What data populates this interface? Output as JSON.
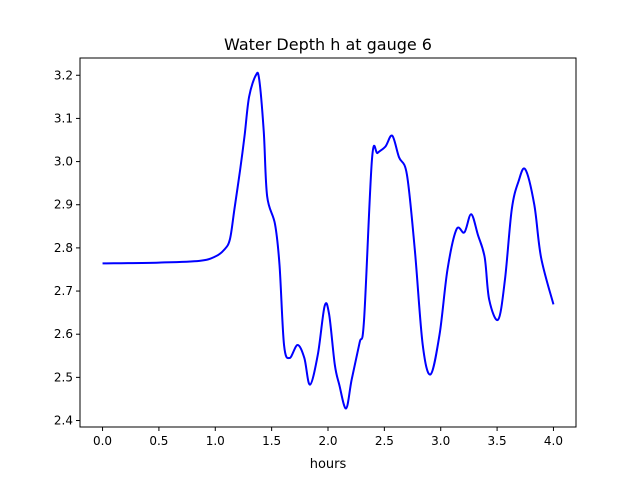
{
  "chart_data": {
    "type": "line",
    "title": "Water Depth h at gauge 6",
    "xlabel": "hours",
    "ylabel": "",
    "xlim": [
      -0.2,
      4.2
    ],
    "ylim": [
      2.385,
      3.24
    ],
    "xticks": [
      0.0,
      0.5,
      1.0,
      1.5,
      2.0,
      2.5,
      3.0,
      3.5,
      4.0
    ],
    "xtick_labels": [
      "0.0",
      "0.5",
      "1.0",
      "1.5",
      "2.0",
      "2.5",
      "3.0",
      "3.5",
      "4.0"
    ],
    "yticks": [
      2.4,
      2.5,
      2.6,
      2.7,
      2.8,
      2.9,
      3.0,
      3.1,
      3.2
    ],
    "ytick_labels": [
      "2.4",
      "2.5",
      "2.6",
      "2.7",
      "2.8",
      "2.9",
      "3.0",
      "3.1",
      "3.2"
    ],
    "grid": false,
    "series": [
      {
        "name": "h",
        "color": "#0000ff",
        "x": [
          0.0,
          0.5,
          0.86,
          1.0,
          1.08,
          1.13,
          1.17,
          1.22,
          1.26,
          1.3,
          1.36,
          1.39,
          1.43,
          1.46,
          1.53,
          1.57,
          1.61,
          1.66,
          1.73,
          1.79,
          1.84,
          1.91,
          1.97,
          2.01,
          2.06,
          2.1,
          2.16,
          2.21,
          2.28,
          2.32,
          2.39,
          2.44,
          2.51,
          2.57,
          2.63,
          2.7,
          2.77,
          2.84,
          2.91,
          2.99,
          3.06,
          3.14,
          3.21,
          3.27,
          3.33,
          3.39,
          3.43,
          3.51,
          3.57,
          3.63,
          3.69,
          3.75,
          3.83,
          3.89,
          4.0
        ],
        "y": [
          2.764,
          2.766,
          2.77,
          2.78,
          2.796,
          2.82,
          2.89,
          2.98,
          3.06,
          3.15,
          3.2,
          3.19,
          3.07,
          2.92,
          2.855,
          2.76,
          2.575,
          2.545,
          2.575,
          2.545,
          2.483,
          2.553,
          2.665,
          2.646,
          2.53,
          2.483,
          2.428,
          2.495,
          2.58,
          2.634,
          3.005,
          3.02,
          3.035,
          3.06,
          3.01,
          2.97,
          2.796,
          2.576,
          2.507,
          2.6,
          2.75,
          2.843,
          2.836,
          2.878,
          2.83,
          2.778,
          2.68,
          2.634,
          2.727,
          2.889,
          2.954,
          2.982,
          2.9,
          2.778,
          2.669
        ]
      }
    ]
  }
}
